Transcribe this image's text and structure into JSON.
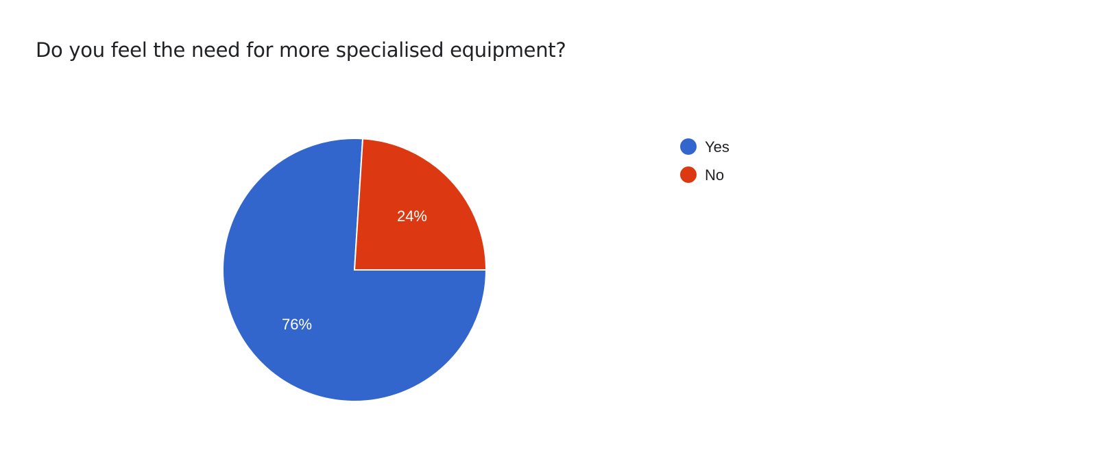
{
  "chart_data": {
    "type": "pie",
    "title": "Do you feel the need for more specialised equipment?",
    "categories": [
      "Yes",
      "No"
    ],
    "values": [
      76,
      24
    ],
    "labels": [
      "76%",
      "24%"
    ],
    "colors": [
      "#3366cc",
      "#dc3912"
    ],
    "start_angle_deg": 90,
    "legend_position": "right"
  }
}
